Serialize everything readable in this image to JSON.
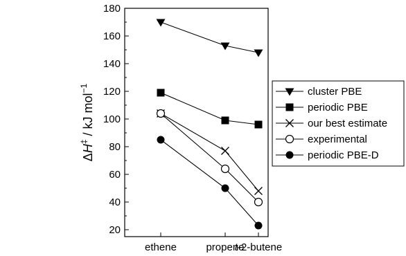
{
  "chart_data": {
    "type": "line",
    "categories": [
      "ethene",
      "propene",
      "t-2-butene"
    ],
    "category_labels": [
      {
        "italic": "",
        "rest": "ethene"
      },
      {
        "italic": "",
        "rest": "propene"
      },
      {
        "italic": "t",
        "rest": "-2-butene"
      }
    ],
    "ylabel": "ΔH‡ / kJ mol⁻¹",
    "ylabel_parts": {
      "delta": "Δ",
      "H": "H",
      "sup": "‡",
      "rest": " / kJ mol",
      "sup2": "−1"
    },
    "ylim": [
      15,
      180
    ],
    "yticks": [
      20,
      40,
      60,
      80,
      100,
      120,
      140,
      160,
      180
    ],
    "grid": false,
    "legend_position": "right",
    "series": [
      {
        "name": "cluster PBE",
        "marker": "triangle-down-filled",
        "values": [
          170,
          153,
          148
        ]
      },
      {
        "name": "periodic PBE",
        "marker": "square-filled",
        "values": [
          119,
          99,
          96
        ]
      },
      {
        "name": "our best estimate",
        "marker": "x",
        "values": [
          104,
          77,
          48
        ]
      },
      {
        "name": "experimental",
        "marker": "circle-open",
        "values": [
          104,
          64,
          40
        ]
      },
      {
        "name": "periodic PBE-D",
        "marker": "circle-filled",
        "values": [
          85,
          50,
          23
        ]
      }
    ],
    "colors": {
      "line": "#000000",
      "background": "#ffffff"
    }
  }
}
